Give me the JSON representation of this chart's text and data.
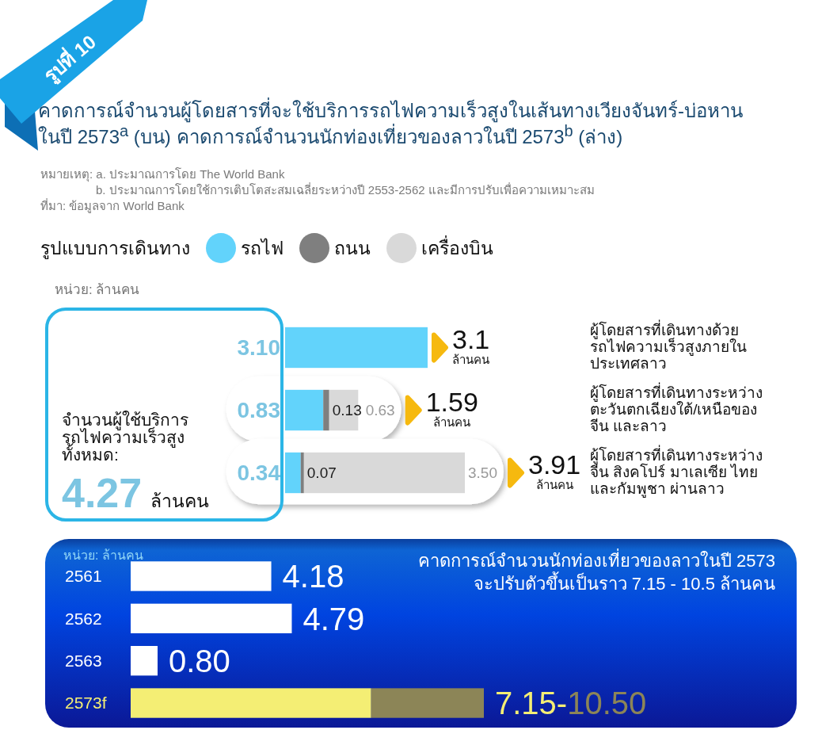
{
  "chart_data": [
    {
      "type": "bar",
      "orientation": "horizontal",
      "stacked": true,
      "title": "คาดการณ์จำนวนผู้โดยสารที่จะใช้บริการรถไฟความเร็วสูงในเส้นทางเวียงจันทร์-บ่อหาน ในปี 2573$^{a}$ (บน) คาดการณ์จำนวนนักท่องเที่ยวของลาวในปี 2573$^{b}$ (ล่าง)",
      "legend_title": "รูปแบบการเดินทาง",
      "legend": "top left",
      "categories": [
        "ผู้โดยสารที่เดินทางด้วยรถไฟความเร็วสูงภายในประเทศลาว",
        "ผู้โดยสารที่เดินทางระหว่างตะวันตกเฉียงใต้/เหนือของจีน และลาว",
        "ผู้โดยสารที่เดินทางระหว่างจีน สิงคโปร์ มาเลเซีย ไทยและกัมพูชา ผ่านลาว"
      ],
      "series": [
        {
          "name": "รถไฟ",
          "color": "#62d3fb",
          "values": [
            3.1,
            0.83,
            0.34
          ],
          "value_labels": [
            "3.10",
            "0.83",
            "0.34"
          ]
        },
        {
          "name": "ถนน",
          "color": "#7f7f7f",
          "values": [
            null,
            0.13,
            0.07
          ],
          "value_labels": [
            null,
            "0.13",
            "0.07"
          ]
        },
        {
          "name": "เครื่องบิน",
          "color": "#d9d9d9",
          "values": [
            null,
            0.63,
            3.5
          ],
          "value_labels": [
            null,
            "0.63",
            "3.50"
          ]
        }
      ],
      "totals": [
        "3.1 ล้านคน",
        "1.59 ล้านคน",
        "3.91 ล้านคน"
      ],
      "annotations": [
        "รูปที่ 10",
        "หมายเหตุ: a. ประมาณการโดย The World Bank",
        "b. ประมาณการโดยใช้การเติบโตสะสมเฉลี่ยระหว่างปี 2553-2562 และมีการปรับเพื่อความเหมาะสม",
        "ที่มา: ข้อมูลจาก World Bank",
        "หน่วย: ล้านคน",
        "จำนวนผู้ใช้บริการรถไฟความเร็วสูงทั้งหมด:",
        "4.27 ล้านคน"
      ]
    },
    {
      "type": "bar",
      "orientation": "horizontal",
      "stacked": true,
      "title": "คาดการณ์จำนวนนักท่องเที่ยวของลาวในปี 2573 จะปรับตัวขึ้นเป็นราว 7.15 - 10.5 ล้านคน",
      "categories": [
        "2561",
        "2562",
        "2563",
        "2573f"
      ],
      "series": [
        {
          "color": "#ffffff",
          "values": [
            4.18,
            4.79,
            0.8,
            null
          ],
          "value_labels": [
            "4.18",
            "4.79",
            "0.80",
            null
          ]
        },
        {
          "color": "#f4ee74",
          "values": [
            null,
            null,
            null,
            7.15
          ]
        },
        {
          "color": "#8c8557",
          "values": [
            null,
            null,
            null,
            3.35
          ]
        }
      ],
      "annotations": [
        "หน่วย: ล้านคน",
        {
          "text": "7.15-10.50",
          "x": 10.5,
          "y": "2573f"
        }
      ]
    }
  ]
}
